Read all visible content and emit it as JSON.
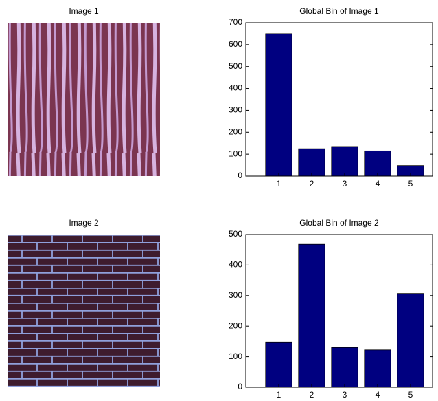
{
  "images": [
    {
      "title": "Image 1"
    },
    {
      "title": "Image 2"
    }
  ],
  "chart_data": [
    {
      "type": "bar",
      "title": "Global Bin of Image 1",
      "categories": [
        "1",
        "2",
        "3",
        "4",
        "5"
      ],
      "values": [
        650,
        125,
        135,
        115,
        48
      ],
      "color": "#000080",
      "ylim": [
        0,
        700
      ],
      "yticks": [
        0,
        100,
        200,
        300,
        400,
        500,
        600,
        700
      ]
    },
    {
      "type": "bar",
      "title": "Global Bin of Image 2",
      "categories": [
        "1",
        "2",
        "3",
        "4",
        "5"
      ],
      "values": [
        148,
        468,
        130,
        122,
        307
      ],
      "color": "#000080",
      "ylim": [
        0,
        500
      ],
      "yticks": [
        0,
        100,
        200,
        300,
        400,
        500
      ]
    }
  ]
}
